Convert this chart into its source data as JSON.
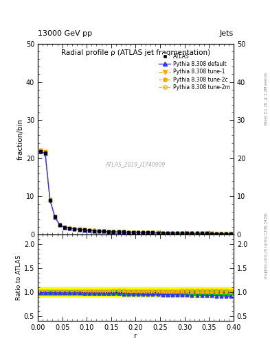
{
  "title": "Radial profile ρ (ATLAS jet fragmentation)",
  "header_left": "13000 GeV pp",
  "header_right": "Jets",
  "xlabel": "r",
  "ylabel_main": "fraction/bin",
  "ylabel_ratio": "Ratio to ATLAS",
  "watermark": "ATLAS_2019_I1740909",
  "rivet_text": "Rivet 3.1.10, ≥ 3.2M events",
  "mcplots_text": "mcplots.cern.ch [arXiv:1306.3436]",
  "r_values": [
    0.005,
    0.015,
    0.025,
    0.035,
    0.045,
    0.055,
    0.065,
    0.075,
    0.085,
    0.095,
    0.105,
    0.115,
    0.125,
    0.135,
    0.145,
    0.155,
    0.165,
    0.175,
    0.185,
    0.195,
    0.205,
    0.215,
    0.225,
    0.235,
    0.245,
    0.255,
    0.265,
    0.275,
    0.285,
    0.295,
    0.305,
    0.315,
    0.325,
    0.335,
    0.345,
    0.355,
    0.365,
    0.375,
    0.385,
    0.395
  ],
  "data_y": [
    21.8,
    21.5,
    9.0,
    4.6,
    2.5,
    1.9,
    1.7,
    1.5,
    1.35,
    1.2,
    1.1,
    1.0,
    0.9,
    0.85,
    0.8,
    0.75,
    0.7,
    0.65,
    0.62,
    0.58,
    0.55,
    0.52,
    0.5,
    0.48,
    0.46,
    0.44,
    0.42,
    0.4,
    0.38,
    0.36,
    0.35,
    0.33,
    0.32,
    0.3,
    0.29,
    0.28,
    0.27,
    0.26,
    0.25,
    0.24
  ],
  "data_yerr": [
    0.3,
    0.3,
    0.15,
    0.08,
    0.05,
    0.04,
    0.03,
    0.025,
    0.022,
    0.02,
    0.018,
    0.016,
    0.015,
    0.014,
    0.013,
    0.012,
    0.011,
    0.01,
    0.01,
    0.009,
    0.009,
    0.008,
    0.008,
    0.008,
    0.007,
    0.007,
    0.007,
    0.006,
    0.006,
    0.006,
    0.006,
    0.005,
    0.005,
    0.005,
    0.005,
    0.005,
    0.004,
    0.004,
    0.004,
    0.004
  ],
  "pythia_default_y": [
    21.7,
    21.3,
    8.95,
    4.55,
    2.48,
    1.88,
    1.68,
    1.48,
    1.33,
    1.18,
    1.08,
    0.98,
    0.88,
    0.83,
    0.78,
    0.73,
    0.68,
    0.63,
    0.6,
    0.56,
    0.53,
    0.5,
    0.48,
    0.46,
    0.44,
    0.42,
    0.4,
    0.38,
    0.36,
    0.34,
    0.33,
    0.31,
    0.3,
    0.28,
    0.27,
    0.26,
    0.25,
    0.24,
    0.23,
    0.22
  ],
  "pythia_tune1_y": [
    22.1,
    21.8,
    9.1,
    4.68,
    2.54,
    1.94,
    1.72,
    1.52,
    1.37,
    1.22,
    1.12,
    1.02,
    0.92,
    0.87,
    0.82,
    0.77,
    0.72,
    0.67,
    0.63,
    0.59,
    0.56,
    0.53,
    0.51,
    0.49,
    0.47,
    0.45,
    0.43,
    0.41,
    0.39,
    0.37,
    0.36,
    0.34,
    0.33,
    0.31,
    0.3,
    0.29,
    0.28,
    0.27,
    0.26,
    0.245
  ],
  "pythia_tune2c_y": [
    22.0,
    21.6,
    9.05,
    4.65,
    2.52,
    1.92,
    1.71,
    1.51,
    1.36,
    1.21,
    1.11,
    1.01,
    0.91,
    0.86,
    0.81,
    0.76,
    0.71,
    0.66,
    0.62,
    0.58,
    0.55,
    0.52,
    0.5,
    0.48,
    0.46,
    0.44,
    0.42,
    0.4,
    0.38,
    0.36,
    0.35,
    0.33,
    0.32,
    0.3,
    0.29,
    0.28,
    0.27,
    0.26,
    0.25,
    0.24
  ],
  "pythia_tune2m_y": [
    22.05,
    21.65,
    9.06,
    4.66,
    2.52,
    1.92,
    1.71,
    1.51,
    1.36,
    1.21,
    1.11,
    1.01,
    0.91,
    0.86,
    0.81,
    0.76,
    0.71,
    0.66,
    0.62,
    0.58,
    0.55,
    0.52,
    0.5,
    0.48,
    0.46,
    0.44,
    0.42,
    0.4,
    0.38,
    0.36,
    0.35,
    0.33,
    0.32,
    0.3,
    0.29,
    0.28,
    0.27,
    0.26,
    0.25,
    0.24
  ],
  "ratio_default": [
    0.995,
    0.991,
    0.994,
    0.989,
    0.992,
    0.989,
    0.988,
    0.987,
    0.985,
    0.983,
    0.982,
    0.98,
    0.978,
    0.976,
    0.975,
    0.973,
    0.971,
    0.969,
    0.968,
    0.966,
    0.964,
    0.962,
    0.96,
    0.958,
    0.957,
    0.955,
    0.952,
    0.95,
    0.947,
    0.944,
    0.943,
    0.939,
    0.938,
    0.933,
    0.931,
    0.929,
    0.926,
    0.923,
    0.92,
    0.917
  ],
  "ratio_tune1": [
    1.014,
    1.014,
    1.011,
    1.017,
    1.016,
    1.021,
    1.012,
    1.013,
    1.015,
    1.017,
    1.018,
    1.02,
    1.022,
    1.024,
    1.025,
    1.027,
    1.028,
    1.031,
    1.016,
    1.017,
    1.018,
    1.019,
    1.02,
    1.021,
    1.022,
    1.023,
    1.024,
    1.025,
    1.026,
    1.028,
    1.029,
    1.03,
    1.031,
    1.033,
    1.034,
    1.036,
    1.037,
    1.038,
    1.04,
    1.021
  ],
  "ratio_tune2c": [
    1.009,
    1.005,
    1.006,
    1.011,
    1.008,
    1.011,
    1.006,
    1.007,
    1.007,
    1.008,
    1.009,
    1.01,
    1.011,
    1.012,
    1.013,
    1.013,
    1.014,
    1.015,
    1.0,
    1.0,
    1.0,
    1.0,
    1.0,
    1.0,
    1.0,
    1.0,
    1.0,
    1.0,
    1.0,
    1.0,
    1.0,
    1.0,
    1.0,
    1.0,
    1.0,
    1.0,
    1.0,
    1.0,
    1.0,
    1.0
  ],
  "ratio_tune2m": [
    1.011,
    1.007,
    1.007,
    1.013,
    1.008,
    1.011,
    1.006,
    1.007,
    1.007,
    1.008,
    1.009,
    1.01,
    1.011,
    1.012,
    1.013,
    1.013,
    1.014,
    1.015,
    1.0,
    1.0,
    1.0,
    1.0,
    1.0,
    1.0,
    1.0,
    1.0,
    1.0,
    1.0,
    1.0,
    1.0,
    1.0,
    1.0,
    1.0,
    1.0,
    1.0,
    1.0,
    1.0,
    1.0,
    1.0,
    1.0
  ],
  "band_yellow": 0.1,
  "band_green": 0.05,
  "color_data": "#000000",
  "color_default": "#3333ff",
  "color_tune1": "#ffaa00",
  "color_tune2c": "#ffaa00",
  "color_tune2m": "#ffaa00",
  "color_band_yellow": "#ffff00",
  "color_band_green": "#00cc00",
  "ylim_main": [
    0,
    50
  ],
  "ylim_ratio": [
    0.4,
    2.2
  ],
  "yticks_main": [
    0,
    10,
    20,
    30,
    40,
    50
  ],
  "yticks_ratio": [
    0.5,
    1.0,
    1.5,
    2.0
  ],
  "xlim": [
    0,
    0.4
  ]
}
